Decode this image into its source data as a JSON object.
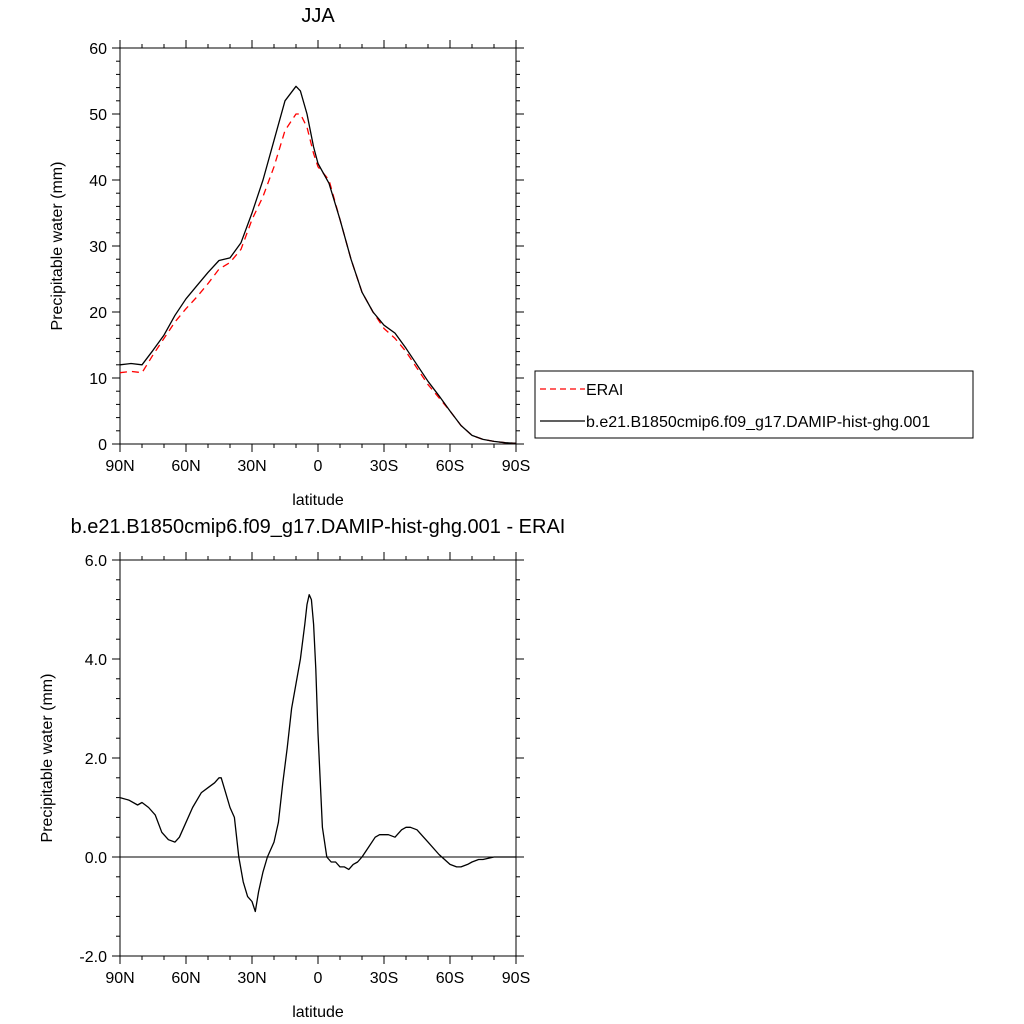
{
  "chart_data": [
    {
      "type": "line",
      "title": "JJA",
      "xlabel": "latitude",
      "ylabel": "Precipitable water (mm)",
      "xlim": [
        90,
        -90
      ],
      "ylim": [
        0,
        60
      ],
      "x_tick_values": [
        90,
        60,
        30,
        0,
        -30,
        -60,
        -90
      ],
      "x_tick_labels": [
        "90N",
        "60N",
        "30N",
        "0",
        "30S",
        "60S",
        "90S"
      ],
      "y_tick_values": [
        0,
        10,
        20,
        30,
        40,
        50,
        60
      ],
      "y_tick_labels": [
        "0",
        "10",
        "20",
        "30",
        "40",
        "50",
        "60"
      ],
      "grid": false,
      "legend_position": "right",
      "series": [
        {
          "name": "ERAI",
          "color": "#ff0000",
          "style": "dashed",
          "x": [
            90,
            85,
            80,
            75,
            70,
            65,
            60,
            55,
            50,
            45,
            40,
            35,
            30,
            25,
            20,
            15,
            10,
            8,
            5,
            2,
            0,
            -5,
            -10,
            -15,
            -20,
            -25,
            -30,
            -35,
            -40,
            -45,
            -50,
            -55,
            -60,
            -65,
            -70,
            -75,
            -80,
            -85,
            -90
          ],
          "y": [
            10.8,
            11.0,
            10.8,
            13.5,
            16.0,
            18.5,
            20.5,
            22.3,
            24.3,
            26.5,
            27.5,
            29.5,
            34.0,
            37.5,
            42.0,
            47.5,
            50.0,
            50.0,
            48.0,
            44.0,
            42.0,
            40.0,
            34.0,
            28.0,
            23.0,
            20.0,
            17.5,
            16.0,
            14.0,
            11.5,
            9.0,
            7.0,
            5.0,
            2.8,
            1.3,
            0.7,
            0.4,
            0.2,
            0.1
          ]
        },
        {
          "name": "b.e21.B1850cmip6.f09_g17.DAMIP-hist-ghg.001",
          "color": "#000000",
          "style": "solid",
          "x": [
            90,
            85,
            80,
            75,
            70,
            65,
            60,
            55,
            50,
            45,
            40,
            35,
            30,
            25,
            20,
            15,
            10,
            8,
            5,
            2,
            0,
            -5,
            -10,
            -15,
            -20,
            -25,
            -30,
            -35,
            -40,
            -45,
            -50,
            -55,
            -60,
            -65,
            -70,
            -75,
            -80,
            -85,
            -90
          ],
          "y": [
            12.0,
            12.2,
            12.0,
            14.2,
            16.5,
            19.5,
            22.0,
            24.0,
            26.0,
            27.8,
            28.2,
            30.5,
            35.0,
            40.0,
            46.0,
            52.0,
            54.2,
            53.5,
            50.0,
            45.0,
            42.5,
            39.5,
            34.0,
            28.0,
            23.0,
            20.0,
            18.0,
            16.8,
            14.5,
            12.0,
            9.5,
            7.3,
            5.0,
            2.8,
            1.3,
            0.7,
            0.4,
            0.2,
            0.1
          ]
        }
      ]
    },
    {
      "type": "line",
      "title": "b.e21.B1850cmip6.f09_g17.DAMIP-hist-ghg.001 - ERAI",
      "xlabel": "latitude",
      "ylabel": "Precipitable water (mm)",
      "xlim": [
        90,
        -90
      ],
      "ylim": [
        -2.0,
        6.0
      ],
      "x_tick_values": [
        90,
        60,
        30,
        0,
        -30,
        -60,
        -90
      ],
      "x_tick_labels": [
        "90N",
        "60N",
        "30N",
        "0",
        "30S",
        "60S",
        "90S"
      ],
      "y_tick_values": [
        -2,
        0,
        2,
        4,
        6
      ],
      "y_tick_labels": [
        "-2.0",
        "0.0",
        "2.0",
        "4.0",
        "6.0"
      ],
      "grid": false,
      "series": [
        {
          "color": "#000000",
          "style": "solid",
          "x": [
            90,
            86,
            82,
            80,
            77,
            74,
            71,
            68,
            65,
            63,
            61,
            57,
            53,
            50,
            47,
            45,
            44,
            42,
            40,
            38,
            36,
            34,
            32,
            30,
            28.5,
            27,
            25,
            23,
            20,
            18,
            16,
            14,
            12,
            10,
            8,
            6,
            5,
            4,
            3,
            2,
            1,
            0,
            -2,
            -4,
            -6,
            -8,
            -10,
            -12,
            -14,
            -16,
            -18,
            -20,
            -23,
            -26,
            -28,
            -30,
            -32,
            -35,
            -38,
            -40,
            -42,
            -45,
            -48,
            -50,
            -55,
            -60,
            -63,
            -65,
            -68,
            -70,
            -73,
            -75,
            -80,
            -85,
            -90
          ],
          "y": [
            1.2,
            1.15,
            1.05,
            1.1,
            1.0,
            0.85,
            0.5,
            0.35,
            0.3,
            0.4,
            0.6,
            1.0,
            1.3,
            1.4,
            1.5,
            1.6,
            1.6,
            1.3,
            1.0,
            0.8,
            0.0,
            -0.5,
            -0.8,
            -0.9,
            -1.1,
            -0.7,
            -0.3,
            0.0,
            0.3,
            0.7,
            1.5,
            2.2,
            3.0,
            3.5,
            4.0,
            4.7,
            5.1,
            5.3,
            5.2,
            4.7,
            3.8,
            2.5,
            0.6,
            0.0,
            -0.1,
            -0.1,
            -0.2,
            -0.2,
            -0.25,
            -0.15,
            -0.1,
            0.0,
            0.2,
            0.4,
            0.45,
            0.45,
            0.45,
            0.4,
            0.55,
            0.6,
            0.6,
            0.55,
            0.4,
            0.3,
            0.05,
            -0.15,
            -0.2,
            -0.2,
            -0.15,
            -0.1,
            -0.05,
            -0.05,
            0.0,
            0.0,
            0.0
          ]
        }
      ]
    }
  ]
}
